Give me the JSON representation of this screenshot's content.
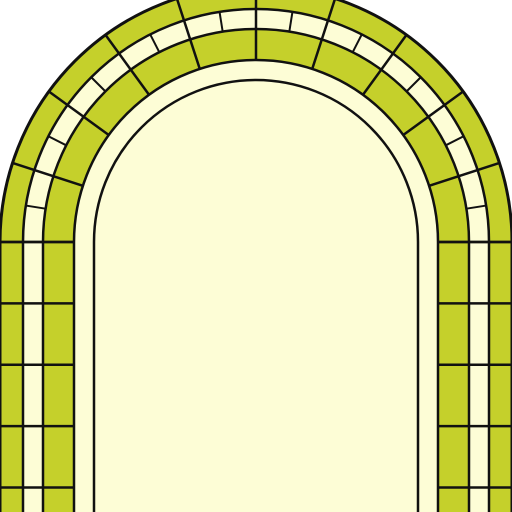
{
  "colors": {
    "green": "#c5d02b",
    "cream": "#fdfdd6",
    "outline": "#111111",
    "background": "#ffffff"
  },
  "image": {
    "subject": "stone-arch-icon",
    "ring_count": 3,
    "ring_colors": [
      "green",
      "cream",
      "green"
    ],
    "arch_voussoir_count": 10,
    "leg_block_rows": 4
  }
}
